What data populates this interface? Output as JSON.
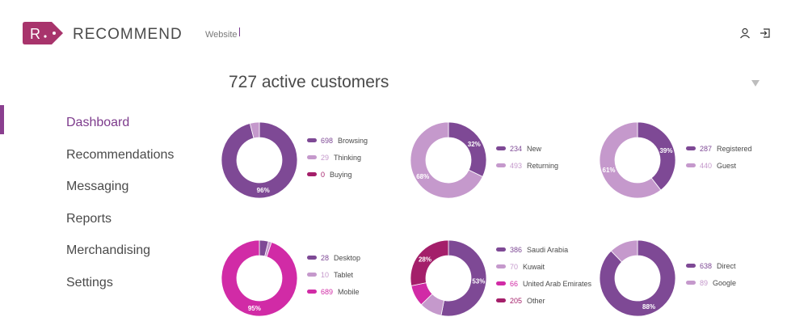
{
  "colors": {
    "dark": "#7e4995",
    "light": "#c599cc",
    "magenta": "#a41f6a",
    "pink": "#d12ba6",
    "brand": "#a8346c"
  },
  "header": {
    "logo_letter": "R",
    "brand": "RECOMMEND",
    "site": "Website",
    "user_icon": "user-icon",
    "logout_icon": "logout-icon"
  },
  "sidebar": {
    "items": [
      {
        "label": "Dashboard",
        "active": true
      },
      {
        "label": "Recommendations"
      },
      {
        "label": "Messaging"
      },
      {
        "label": "Reports"
      },
      {
        "label": "Merchandising"
      },
      {
        "label": "Settings"
      }
    ]
  },
  "main": {
    "title": "727 active customers",
    "dropdown_icon": "triangle-down-icon"
  },
  "charts": [
    {
      "id": "activity",
      "segments": [
        {
          "value": 698,
          "label": "Browsing",
          "color": "dark",
          "pct": "96%"
        },
        {
          "value": 29,
          "label": "Thinking",
          "color": "light",
          "pct": ""
        },
        {
          "value": 0,
          "label": "Buying",
          "color": "magenta",
          "pct": ""
        }
      ]
    },
    {
      "id": "new-returning",
      "segments": [
        {
          "value": 234,
          "label": "New",
          "color": "dark",
          "pct": "32%"
        },
        {
          "value": 493,
          "label": "Returning",
          "color": "light",
          "pct": "68%"
        }
      ]
    },
    {
      "id": "registered-guest",
      "segments": [
        {
          "value": 287,
          "label": "Registered",
          "color": "dark",
          "pct": "39%"
        },
        {
          "value": 440,
          "label": "Guest",
          "color": "light",
          "pct": "61%"
        }
      ]
    },
    {
      "id": "device",
      "segments": [
        {
          "value": 28,
          "label": "Desktop",
          "color": "dark",
          "pct": ""
        },
        {
          "value": 10,
          "label": "Tablet",
          "color": "light",
          "pct": ""
        },
        {
          "value": 689,
          "label": "Mobile",
          "color": "pink",
          "pct": "95%"
        }
      ]
    },
    {
      "id": "country",
      "segments": [
        {
          "value": 386,
          "label": "Saudi Arabia",
          "color": "dark",
          "pct": "53%"
        },
        {
          "value": 70,
          "label": "Kuwait",
          "color": "light",
          "pct": ""
        },
        {
          "value": 66,
          "label": "United Arab Emirates",
          "color": "pink",
          "pct": ""
        },
        {
          "value": 205,
          "label": "Other",
          "color": "magenta",
          "pct": "28%"
        }
      ]
    },
    {
      "id": "source",
      "segments": [
        {
          "value": 638,
          "label": "Direct",
          "color": "dark",
          "pct": "88%"
        },
        {
          "value": 89,
          "label": "Google",
          "color": "light",
          "pct": ""
        }
      ]
    }
  ]
}
